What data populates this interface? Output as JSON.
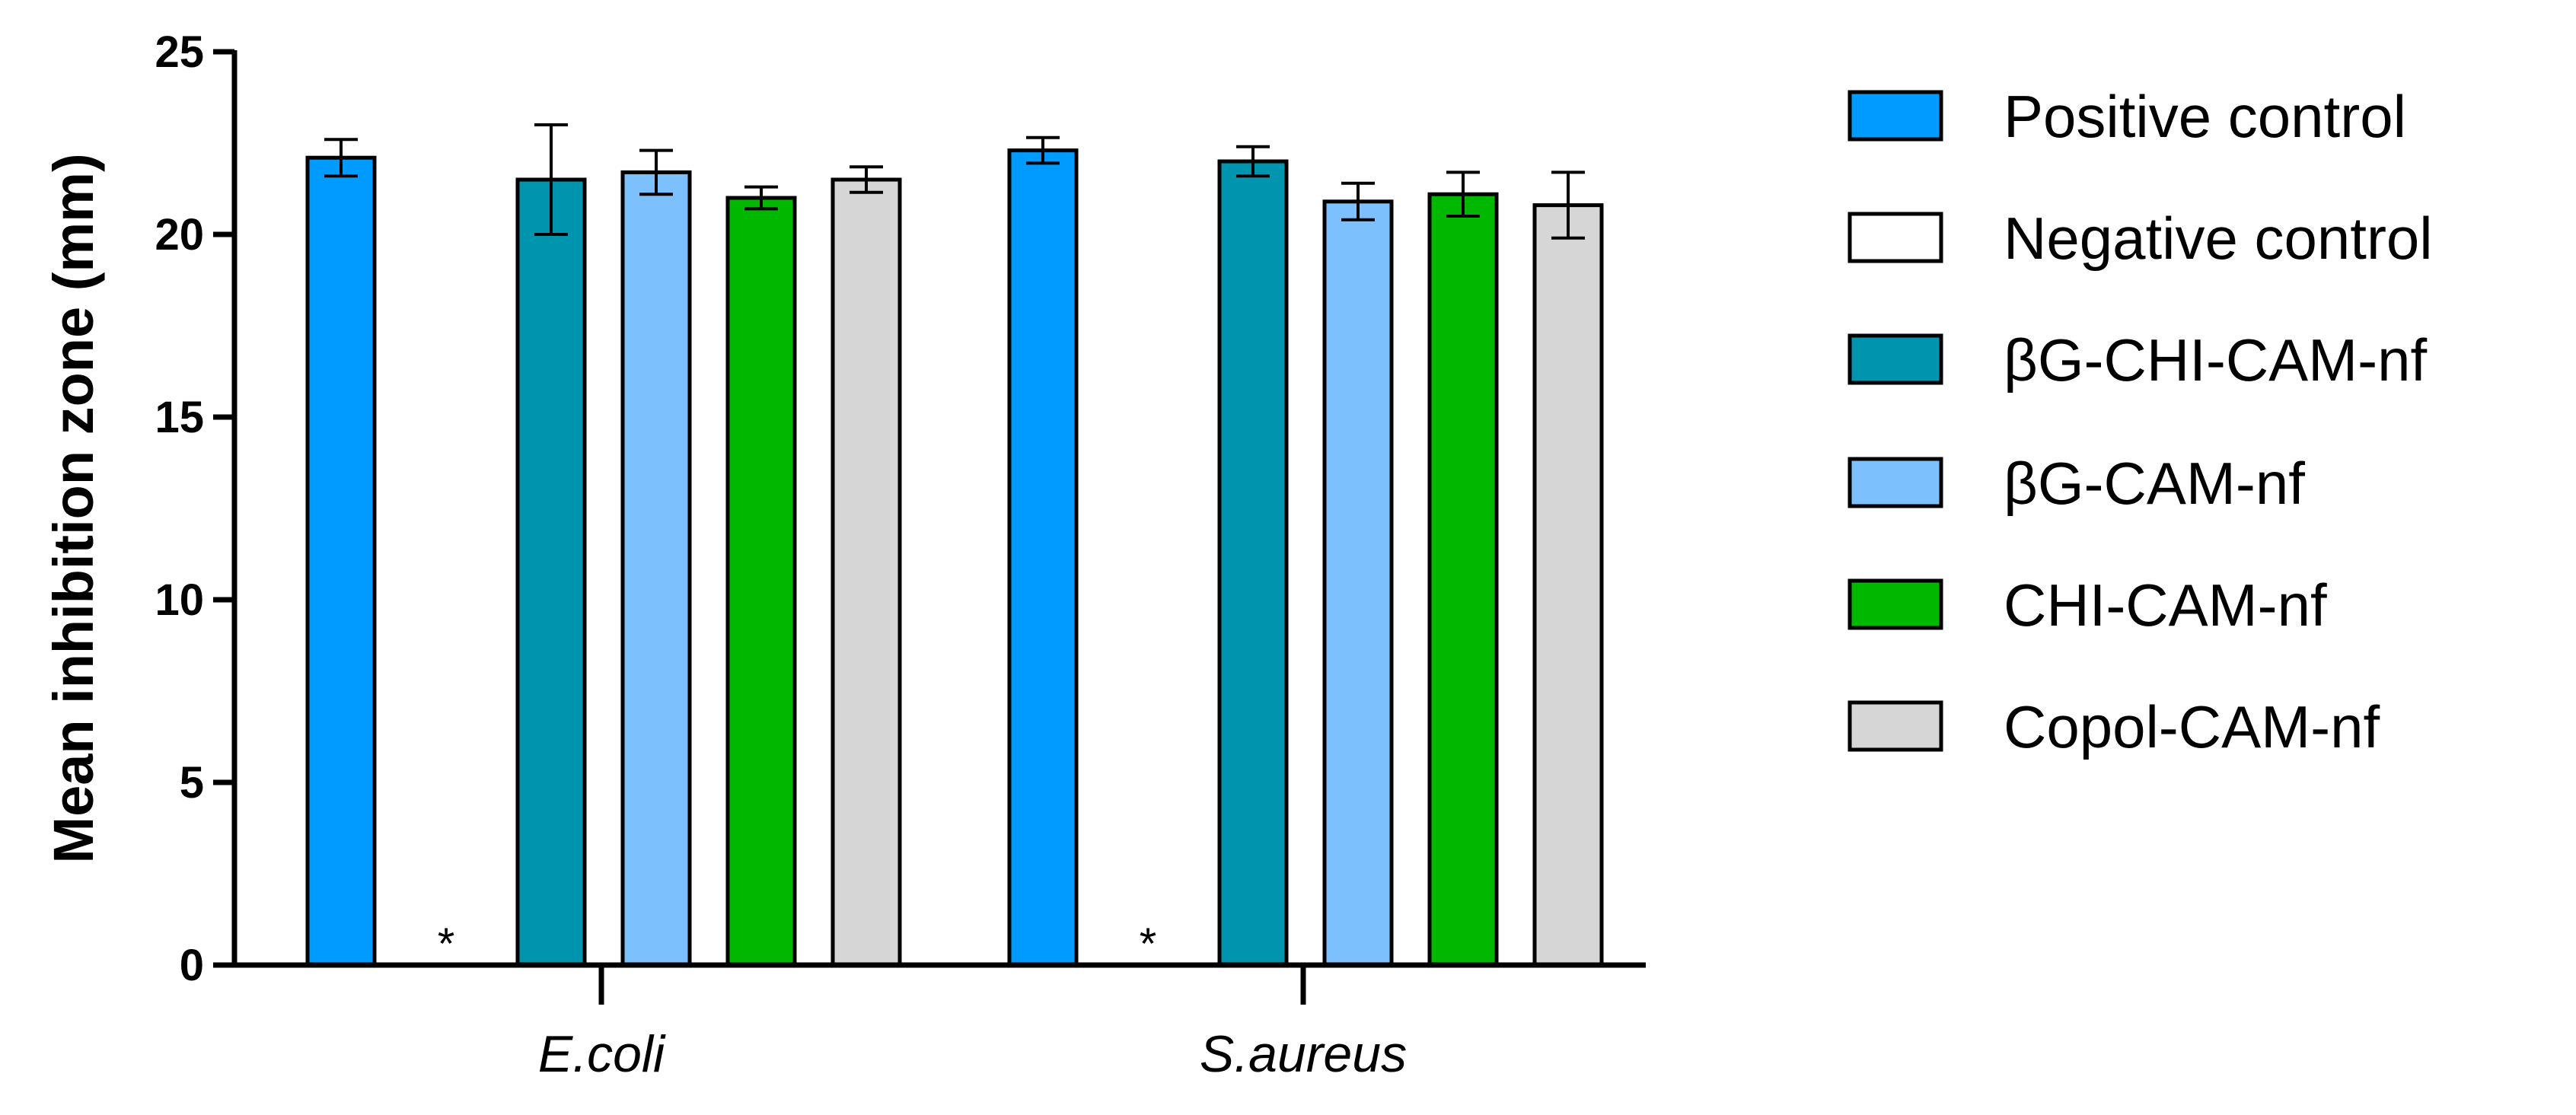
{
  "chart_data": {
    "type": "bar",
    "title": "",
    "xlabel": "",
    "ylabel": "Mean inhibition zone (mm)",
    "ylim": [
      0,
      25
    ],
    "yticks": [
      0,
      5,
      10,
      15,
      20,
      25
    ],
    "categories": [
      "E.coli",
      "S.aureus"
    ],
    "legend_position": "right",
    "grid": false,
    "series": [
      {
        "name": "Positive control",
        "color": "#009BFF",
        "values": [
          22.1,
          22.3
        ],
        "errors": [
          0.5,
          0.35
        ]
      },
      {
        "name": "Negative control",
        "color": "#FFFFFF",
        "values": [
          0,
          0
        ],
        "errors": [
          0,
          0
        ],
        "annotations": [
          "*",
          "*"
        ]
      },
      {
        "name": "βG-CHI-CAM-nf",
        "color": "#0095AE",
        "values": [
          21.5,
          22.0
        ],
        "errors": [
          1.5,
          0.4
        ]
      },
      {
        "name": "βG-CAM-nf",
        "color": "#7CC1FE",
        "values": [
          21.7,
          20.9
        ],
        "errors": [
          0.6,
          0.5
        ]
      },
      {
        "name": "CHI-CAM-nf",
        "color": "#00B800",
        "values": [
          21.0,
          21.1
        ],
        "errors": [
          0.3,
          0.6
        ]
      },
      {
        "name": "Copol-CAM-nf",
        "color": "#D6D6D6",
        "values": [
          21.5,
          20.8
        ],
        "errors": [
          0.35,
          0.9
        ]
      }
    ]
  }
}
